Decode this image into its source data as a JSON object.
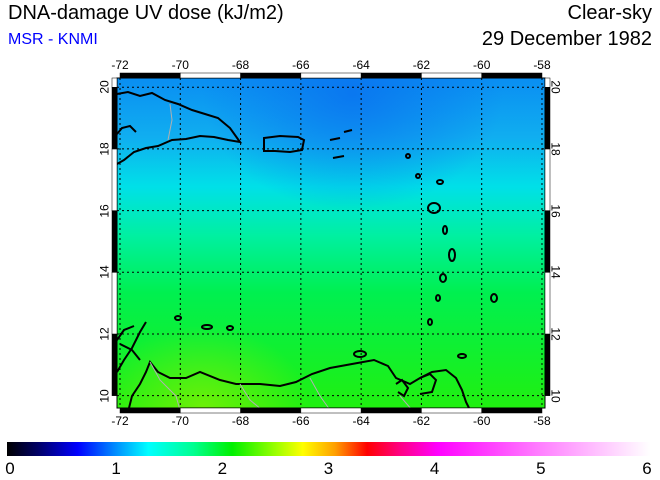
{
  "header": {
    "title": "DNA-damage UV dose (kJ/m2)",
    "credit": "MSR - KNMI",
    "mode": "Clear-sky",
    "date": "29 December 1982"
  },
  "map": {
    "lon_ticks": [
      "-72",
      "-70",
      "-68",
      "-66",
      "-64",
      "-62",
      "-60",
      "-58"
    ],
    "lat_ticks": [
      "10",
      "12",
      "14",
      "16",
      "18",
      "20"
    ],
    "lon_range": [
      -72.1,
      -57.9
    ],
    "lat_range": [
      9.6,
      20.3
    ],
    "field_colors": {
      "north": "#0a8ef2",
      "mid": "#00e8e0",
      "south": "#10f010"
    }
  },
  "colorbar": {
    "labels": [
      "0",
      "1",
      "2",
      "3",
      "4",
      "5",
      "6"
    ],
    "min": 0,
    "max": 6
  }
}
